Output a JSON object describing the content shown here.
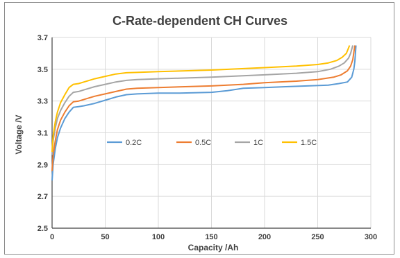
{
  "chart_data": {
    "type": "line",
    "title": "C-Rate-dependent CH Curves",
    "xlabel": "Capacity /Ah",
    "ylabel": "Voltage /V",
    "xlim": [
      0,
      300
    ],
    "ylim": [
      2.5,
      3.7
    ],
    "xticks": [
      "0",
      "50",
      "100",
      "150",
      "200",
      "250",
      "300"
    ],
    "yticks": [
      "2.5",
      "2.7",
      "2.9",
      "3.1",
      "3.3",
      "3.5",
      "3.7"
    ],
    "grid": true,
    "legend_position": "center",
    "series": [
      {
        "name": "0.2C",
        "color": "#5b9bd5",
        "points": [
          [
            0,
            2.8
          ],
          [
            1,
            2.9
          ],
          [
            3,
            3.0
          ],
          [
            5,
            3.07
          ],
          [
            8,
            3.13
          ],
          [
            12,
            3.19
          ],
          [
            16,
            3.23
          ],
          [
            20,
            3.26
          ],
          [
            25,
            3.265
          ],
          [
            30,
            3.27
          ],
          [
            40,
            3.285
          ],
          [
            50,
            3.305
          ],
          [
            60,
            3.325
          ],
          [
            70,
            3.34
          ],
          [
            80,
            3.345
          ],
          [
            100,
            3.35
          ],
          [
            120,
            3.35
          ],
          [
            150,
            3.355
          ],
          [
            165,
            3.365
          ],
          [
            180,
            3.38
          ],
          [
            200,
            3.385
          ],
          [
            220,
            3.39
          ],
          [
            240,
            3.395
          ],
          [
            260,
            3.4
          ],
          [
            270,
            3.41
          ],
          [
            278,
            3.42
          ],
          [
            282,
            3.45
          ],
          [
            284,
            3.5
          ],
          [
            285,
            3.55
          ],
          [
            286,
            3.65
          ]
        ]
      },
      {
        "name": "0.5C",
        "color": "#ed7d31",
        "points": [
          [
            0,
            2.86
          ],
          [
            1,
            2.96
          ],
          [
            3,
            3.05
          ],
          [
            5,
            3.12
          ],
          [
            8,
            3.18
          ],
          [
            12,
            3.23
          ],
          [
            16,
            3.27
          ],
          [
            20,
            3.295
          ],
          [
            25,
            3.3
          ],
          [
            30,
            3.31
          ],
          [
            40,
            3.33
          ],
          [
            50,
            3.345
          ],
          [
            60,
            3.36
          ],
          [
            70,
            3.375
          ],
          [
            80,
            3.38
          ],
          [
            100,
            3.385
          ],
          [
            150,
            3.395
          ],
          [
            180,
            3.405
          ],
          [
            200,
            3.415
          ],
          [
            230,
            3.425
          ],
          [
            250,
            3.435
          ],
          [
            265,
            3.45
          ],
          [
            272,
            3.465
          ],
          [
            278,
            3.49
          ],
          [
            281,
            3.52
          ],
          [
            283,
            3.56
          ],
          [
            285,
            3.65
          ]
        ]
      },
      {
        "name": "1C",
        "color": "#a5a5a5",
        "points": [
          [
            0,
            2.96
          ],
          [
            1,
            3.05
          ],
          [
            3,
            3.13
          ],
          [
            5,
            3.19
          ],
          [
            8,
            3.24
          ],
          [
            12,
            3.29
          ],
          [
            16,
            3.33
          ],
          [
            20,
            3.355
          ],
          [
            25,
            3.36
          ],
          [
            30,
            3.37
          ],
          [
            40,
            3.39
          ],
          [
            50,
            3.405
          ],
          [
            60,
            3.42
          ],
          [
            70,
            3.43
          ],
          [
            80,
            3.435
          ],
          [
            100,
            3.44
          ],
          [
            150,
            3.45
          ],
          [
            200,
            3.465
          ],
          [
            230,
            3.475
          ],
          [
            250,
            3.485
          ],
          [
            262,
            3.5
          ],
          [
            270,
            3.52
          ],
          [
            275,
            3.54
          ],
          [
            279,
            3.57
          ],
          [
            281,
            3.6
          ],
          [
            283,
            3.65
          ]
        ]
      },
      {
        "name": "1.5C",
        "color": "#ffc000",
        "points": [
          [
            0,
            2.98
          ],
          [
            1,
            3.08
          ],
          [
            3,
            3.17
          ],
          [
            5,
            3.23
          ],
          [
            8,
            3.29
          ],
          [
            12,
            3.34
          ],
          [
            16,
            3.385
          ],
          [
            20,
            3.405
          ],
          [
            25,
            3.41
          ],
          [
            30,
            3.42
          ],
          [
            40,
            3.44
          ],
          [
            50,
            3.455
          ],
          [
            60,
            3.47
          ],
          [
            70,
            3.478
          ],
          [
            80,
            3.48
          ],
          [
            100,
            3.485
          ],
          [
            150,
            3.495
          ],
          [
            200,
            3.51
          ],
          [
            230,
            3.52
          ],
          [
            250,
            3.53
          ],
          [
            260,
            3.54
          ],
          [
            268,
            3.555
          ],
          [
            273,
            3.575
          ],
          [
            277,
            3.6
          ],
          [
            280,
            3.65
          ]
        ]
      }
    ]
  }
}
